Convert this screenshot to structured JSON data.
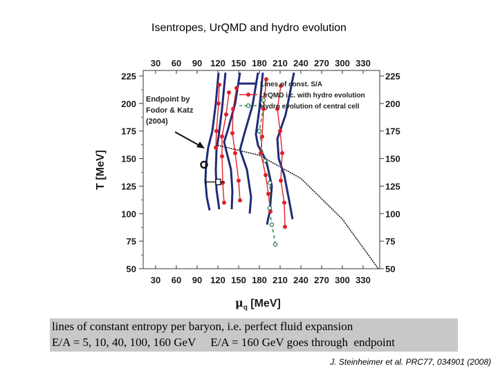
{
  "slide": {
    "title": "Isentropes, UrQMD and hydro evolution",
    "caption_line1": "lines of constant entropy per baryon, i.e. perfect fluid expansion",
    "caption_line2": "E/A = 5, 10, 40, 100, 160 GeV     E/A = 160 GeV goes through  endpoint",
    "reference": "J. Steinheimer et al. PRC77, 034901 (2008)"
  },
  "chart_data": {
    "type": "line",
    "xlabel_symbol": "μ",
    "xlabel_subscript": "q",
    "xlabel_unit": "[MeV]",
    "ylabel": "T [MeV]",
    "xlim": [
      12,
      354
    ],
    "ylim": [
      50,
      230
    ],
    "x_ticks": [
      30,
      60,
      90,
      120,
      150,
      180,
      210,
      240,
      270,
      300,
      330
    ],
    "y_ticks": [
      50,
      75,
      100,
      125,
      150,
      175,
      200,
      225
    ],
    "endpoint_annotation": [
      "Endpoint by",
      "Fodor & Katz",
      "(2004)"
    ],
    "endpoint": {
      "x": 120,
      "y": 162
    },
    "legend": [
      {
        "label": "Lines of const. S/A",
        "color": "#1f2a78",
        "style": "solid"
      },
      {
        "label": "UrQMD i.c. with hydro evolution",
        "color": "#e0202a",
        "style": "line-dot"
      },
      {
        "label": "Hydro evolution of central cell",
        "color": "#1f6e3a",
        "style": "dash-open-circle"
      }
    ],
    "colors": {
      "isentropes": "#1f2a78",
      "urqmd": "#e0202a",
      "hydro": "#1f6e3a",
      "transition": "#111111"
    },
    "transition_line": [
      [
        120,
        162
      ],
      [
        180,
        153
      ],
      [
        240,
        132
      ],
      [
        300,
        95
      ],
      [
        352,
        50
      ]
    ],
    "series": [
      {
        "name": "Lines of const. S/A",
        "kind": "isentrope",
        "values": [
          [
            [
              121,
              228
            ],
            [
              117,
              200
            ],
            [
              112,
              175
            ],
            [
              106,
              160
            ],
            [
              103,
              145
            ],
            [
              102,
              130
            ],
            [
              104,
              115
            ],
            [
              108,
              103
            ]
          ],
          [
            [
              131,
              228
            ],
            [
              126,
              195
            ],
            [
              121,
              170
            ],
            [
              118,
              158
            ],
            [
              117,
              140
            ],
            [
              118,
              122
            ],
            [
              122,
              104
            ]
          ],
          [
            [
              152,
              228
            ],
            [
              145,
              200
            ],
            [
              134,
              175
            ],
            [
              129,
              165
            ],
            [
              133,
              155
            ],
            [
              139,
              140
            ],
            [
              141,
              120
            ],
            [
              140,
              104
            ]
          ],
          [
            [
              178,
              228
            ],
            [
              170,
              198
            ],
            [
              158,
              172
            ],
            [
              152,
              158
            ],
            [
              162,
              140
            ],
            [
              168,
              115
            ],
            [
              166,
              100
            ]
          ],
          [
            [
              185,
              228
            ],
            [
              180,
              195
            ],
            [
              175,
              172
            ],
            [
              178,
              162
            ],
            [
              190,
              148
            ],
            [
              198,
              125
            ],
            [
              195,
              102
            ],
            [
              191,
              90
            ]
          ],
          [
            [
              230,
              228
            ],
            [
              218,
              190
            ],
            [
              206,
              168
            ],
            [
              208,
              150
            ],
            [
              216,
              135
            ],
            [
              223,
              112
            ],
            [
              228,
              95
            ]
          ]
        ]
      },
      {
        "name": "UrQMD i.c. with hydro evolution",
        "kind": "urqmd",
        "values": [
          [
            [
              122,
              217
            ],
            [
              121,
              200
            ],
            [
              118,
              175
            ],
            [
              117,
              160
            ]
          ],
          [
            [
              136,
              210
            ],
            [
              132,
              190
            ],
            [
              126,
              170
            ],
            [
              126,
              152
            ],
            [
              127,
              128
            ],
            [
              129,
              110
            ]
          ],
          [
            [
              147,
              214
            ],
            [
              142,
              195
            ],
            [
              141,
              173
            ],
            [
              145,
              155
            ],
            [
              150,
              130
            ],
            [
              152,
              112
            ]
          ],
          [
            [
              190,
              222
            ],
            [
              186,
              195
            ],
            [
              184,
              170
            ],
            [
              182,
              155
            ],
            [
              189,
              135
            ],
            [
              193,
              118
            ],
            [
              196,
              102
            ]
          ],
          [
            [
              211,
              216
            ],
            [
              206,
              195
            ],
            [
              210,
              175
            ],
            [
              213,
              155
            ],
            [
              211,
              130
            ],
            [
              216,
              110
            ],
            [
              217,
              88
            ]
          ]
        ]
      },
      {
        "name": "Hydro evolution of central cell",
        "kind": "hydro",
        "values": [
          [
            [
              186,
              203
            ],
            [
              184,
              190
            ],
            [
              180,
              175
            ],
            [
              184,
              158
            ],
            [
              188,
              148
            ],
            [
              192,
              140
            ],
            [
              195,
              128
            ],
            [
              196,
              118
            ],
            [
              195,
              105
            ],
            [
              196,
              98
            ],
            [
              198,
              90
            ],
            [
              201,
              80
            ],
            [
              203,
              72
            ]
          ]
        ]
      }
    ]
  }
}
